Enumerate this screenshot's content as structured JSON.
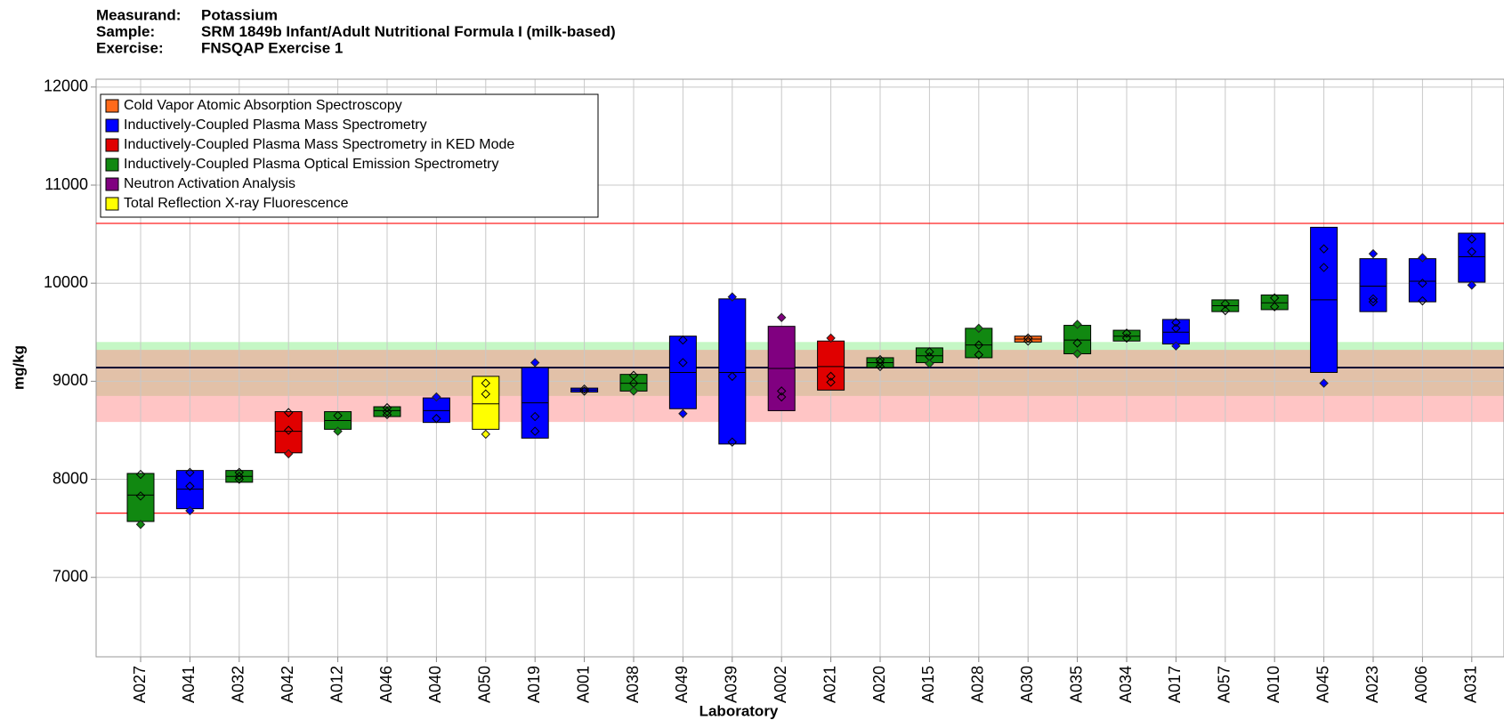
{
  "chart_data": {
    "type": "floating-box",
    "header": [
      {
        "label": "Measurand:",
        "value": "Potassium"
      },
      {
        "label": "Sample:",
        "value": "SRM 1849b Infant/Adult Nutritional Formula I (milk-based)"
      },
      {
        "label": "Exercise:",
        "value": "FNSQAP Exercise 1"
      }
    ],
    "ylabel": "mg/kg",
    "xlabel": "Laboratory",
    "ylim": [
      6190,
      12080
    ],
    "yticks": [
      7000,
      8000,
      9000,
      10000,
      11000,
      12000
    ],
    "grid": true,
    "legend": "upper left",
    "categories": [
      "A027",
      "A041",
      "A032",
      "A042",
      "A012",
      "A046",
      "A040",
      "A050",
      "A019",
      "A001",
      "A038",
      "A049",
      "A039",
      "A002",
      "A021",
      "A020",
      "A015",
      "A028",
      "A030",
      "A035",
      "A034",
      "A017",
      "A057",
      "A010",
      "A045",
      "A023",
      "A006",
      "A031"
    ],
    "reference_lines": [
      {
        "value": 9140,
        "color": "#000033"
      },
      {
        "value": 10610,
        "color": "#ff2020"
      },
      {
        "value": 7655,
        "color": "#ff2020"
      }
    ],
    "bands": [
      {
        "range": [
          8850,
          9400
        ],
        "color": "rgba(150,240,150,0.55)"
      },
      {
        "range": [
          8585,
          9320
        ],
        "color": "rgba(255,140,140,0.5)"
      }
    ],
    "series": [
      {
        "name": "Cold Vapor Atomic Absorption Spectroscopy",
        "color": "#ff6a1a",
        "low": [
          null,
          null,
          null,
          null,
          null,
          null,
          null,
          null,
          null,
          null,
          null,
          null,
          null,
          null,
          null,
          null,
          null,
          null,
          9400,
          null,
          null,
          null,
          null,
          null,
          null,
          null,
          null,
          null
        ],
        "high": [
          null,
          null,
          null,
          null,
          null,
          null,
          null,
          null,
          null,
          null,
          null,
          null,
          null,
          null,
          null,
          null,
          null,
          null,
          9460,
          null,
          null,
          null,
          null,
          null,
          null,
          null,
          null,
          null
        ],
        "mean": [
          null,
          null,
          null,
          null,
          null,
          null,
          null,
          null,
          null,
          null,
          null,
          null,
          null,
          null,
          null,
          null,
          null,
          null,
          9430,
          null,
          null,
          null,
          null,
          null,
          null,
          null,
          null,
          null
        ],
        "points": [
          null,
          null,
          null,
          null,
          null,
          null,
          null,
          null,
          null,
          null,
          null,
          null,
          null,
          null,
          null,
          null,
          null,
          null,
          [
            9440,
            9410
          ],
          null,
          null,
          null,
          null,
          null,
          null,
          null,
          null,
          null
        ]
      },
      {
        "name": "Inductively-Coupled Plasma Mass Spectrometry",
        "color": "#0000ff",
        "low": [
          null,
          7700,
          null,
          null,
          null,
          null,
          8580,
          null,
          8420,
          8890,
          null,
          8720,
          8360,
          null,
          null,
          null,
          null,
          null,
          null,
          null,
          null,
          9380,
          null,
          null,
          9090,
          9710,
          9810,
          10010
        ],
        "high": [
          null,
          8090,
          null,
          null,
          null,
          null,
          8830,
          null,
          9140,
          8930,
          null,
          9460,
          9840,
          null,
          null,
          null,
          null,
          null,
          null,
          null,
          null,
          9630,
          null,
          null,
          10570,
          10250,
          10250,
          10510
        ],
        "mean": [
          null,
          7900,
          null,
          null,
          null,
          null,
          8700,
          null,
          8780,
          8910,
          null,
          9090,
          9090,
          null,
          null,
          null,
          null,
          null,
          null,
          null,
          null,
          9500,
          null,
          null,
          9830,
          9970,
          10020,
          10270
        ],
        "points": [
          null,
          [
            8070,
            7930,
            7680
          ],
          null,
          null,
          null,
          null,
          [
            8840,
            8620
          ],
          null,
          [
            9190,
            8640,
            8490
          ],
          [
            8920,
            8900
          ],
          null,
          [
            9420,
            9190,
            8670
          ],
          [
            9860,
            9050,
            8380
          ],
          null,
          null,
          null,
          null,
          null,
          null,
          null,
          null,
          [
            9600,
            9540,
            9360
          ],
          null,
          null,
          [
            10350,
            10160,
            8980
          ],
          [
            10300,
            9840,
            9810
          ],
          [
            10260,
            10000,
            9820
          ],
          [
            10450,
            10320,
            9980
          ]
        ]
      },
      {
        "name": "Inductively-Coupled Plasma Mass Spectrometry in KED Mode",
        "color": "#e00000",
        "low": [
          null,
          null,
          null,
          8270,
          null,
          null,
          null,
          null,
          null,
          null,
          null,
          null,
          null,
          null,
          8910,
          null,
          null,
          null,
          null,
          null,
          null,
          null,
          null,
          null,
          null,
          null,
          null,
          null
        ],
        "high": [
          null,
          null,
          null,
          8690,
          null,
          null,
          null,
          null,
          null,
          null,
          null,
          null,
          null,
          null,
          9410,
          null,
          null,
          null,
          null,
          null,
          null,
          null,
          null,
          null,
          null,
          null,
          null,
          null
        ],
        "mean": [
          null,
          null,
          null,
          8490,
          null,
          null,
          null,
          null,
          null,
          null,
          null,
          null,
          null,
          null,
          9150,
          null,
          null,
          null,
          null,
          null,
          null,
          null,
          null,
          null,
          null,
          null,
          null,
          null
        ],
        "points": [
          null,
          null,
          null,
          [
            8680,
            8500,
            8260
          ],
          null,
          null,
          null,
          null,
          null,
          null,
          null,
          null,
          null,
          null,
          [
            9440,
            9050,
            8990
          ],
          null,
          null,
          null,
          null,
          null,
          null,
          null,
          null,
          null,
          null,
          null,
          null,
          null
        ]
      },
      {
        "name": "Inductively-Coupled Plasma Optical Emission Spectrometry",
        "color": "#118811",
        "low": [
          7570,
          null,
          7970,
          null,
          8510,
          8640,
          null,
          null,
          null,
          null,
          8900,
          null,
          null,
          null,
          null,
          9140,
          9190,
          9240,
          null,
          9280,
          9410,
          null,
          9710,
          9730,
          null,
          null,
          null,
          null
        ],
        "high": [
          8060,
          null,
          8090,
          null,
          8690,
          8740,
          null,
          null,
          null,
          null,
          9070,
          null,
          null,
          null,
          null,
          9240,
          9340,
          9540,
          null,
          9570,
          9520,
          null,
          9830,
          9880,
          null,
          null,
          null,
          null
        ],
        "mean": [
          7840,
          null,
          8030,
          null,
          8600,
          8700,
          null,
          null,
          null,
          null,
          8980,
          null,
          null,
          null,
          null,
          9190,
          9260,
          9370,
          null,
          9420,
          9460,
          null,
          9770,
          9800,
          null,
          null,
          null,
          null
        ],
        "points": [
          [
            8050,
            7830,
            7540
          ],
          null,
          [
            8070,
            8030,
            8000
          ],
          null,
          [
            8650,
            8490
          ],
          [
            8730,
            8690,
            8660
          ],
          null,
          null,
          null,
          null,
          [
            9060,
            8980,
            8900
          ],
          null,
          null,
          null,
          null,
          [
            9220,
            9190,
            9150
          ],
          [
            9300,
            9250,
            9180
          ],
          [
            9540,
            9370,
            9270
          ],
          null,
          [
            9580,
            9390,
            9280
          ],
          [
            9490,
            9440
          ],
          null,
          [
            9790,
            9720
          ],
          [
            9850,
            9760
          ],
          null,
          null,
          null,
          null
        ]
      },
      {
        "name": "Neutron Activation Analysis",
        "color": "#800080",
        "low": [
          null,
          null,
          null,
          null,
          null,
          null,
          null,
          null,
          null,
          null,
          null,
          null,
          null,
          8700,
          null,
          null,
          null,
          null,
          null,
          null,
          null,
          null,
          null,
          null,
          null,
          null,
          null,
          null
        ],
        "high": [
          null,
          null,
          null,
          null,
          null,
          null,
          null,
          null,
          null,
          null,
          null,
          null,
          null,
          9560,
          null,
          null,
          null,
          null,
          null,
          null,
          null,
          null,
          null,
          null,
          null,
          null,
          null,
          null
        ],
        "mean": [
          null,
          null,
          null,
          null,
          null,
          null,
          null,
          null,
          null,
          null,
          null,
          null,
          null,
          9130,
          null,
          null,
          null,
          null,
          null,
          null,
          null,
          null,
          null,
          null,
          null,
          null,
          null,
          null
        ],
        "points": [
          null,
          null,
          null,
          null,
          null,
          null,
          null,
          null,
          null,
          null,
          null,
          null,
          null,
          [
            9650,
            8900,
            8840
          ],
          null,
          null,
          null,
          null,
          null,
          null,
          null,
          null,
          null,
          null,
          null,
          null,
          null,
          null
        ]
      },
      {
        "name": "Total Reflection X-ray Fluorescence",
        "color": "#ffff00",
        "low": [
          null,
          null,
          null,
          null,
          null,
          null,
          null,
          8510,
          null,
          null,
          null,
          null,
          null,
          null,
          null,
          null,
          null,
          null,
          null,
          null,
          null,
          null,
          null,
          null,
          null,
          null,
          null,
          null
        ],
        "high": [
          null,
          null,
          null,
          null,
          null,
          null,
          null,
          9050,
          null,
          null,
          null,
          null,
          null,
          null,
          null,
          null,
          null,
          null,
          null,
          null,
          null,
          null,
          null,
          null,
          null,
          null,
          null,
          null
        ],
        "mean": [
          null,
          null,
          null,
          null,
          null,
          null,
          null,
          8770,
          null,
          null,
          null,
          null,
          null,
          null,
          null,
          null,
          null,
          null,
          null,
          null,
          null,
          null,
          null,
          null,
          null,
          null,
          null,
          null
        ],
        "points": [
          null,
          null,
          null,
          null,
          null,
          null,
          null,
          [
            8980,
            8870,
            8460
          ],
          null,
          null,
          null,
          null,
          null,
          null,
          null,
          null,
          null,
          null,
          null,
          null,
          null,
          null,
          null,
          null,
          null,
          null,
          null,
          null
        ]
      }
    ]
  }
}
